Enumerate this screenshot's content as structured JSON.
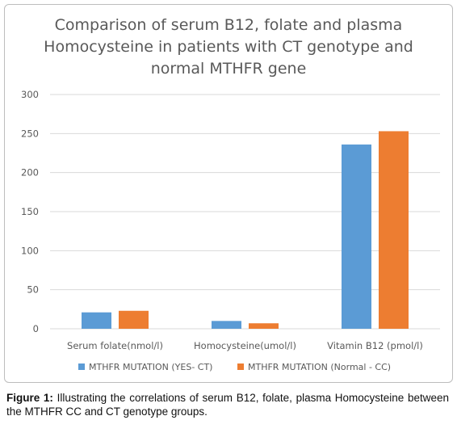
{
  "chart_data": {
    "type": "bar",
    "title_lines": [
      "Comparison of serum B12, folate and plasma",
      "Homocysteine in patients with CT genotype and",
      "normal MTHFR gene"
    ],
    "categories": [
      "Serum folate(nmol/l)",
      "Homocysteine(umol/l)",
      "Vitamin B12 (pmol/l)"
    ],
    "series": [
      {
        "name": "MTHFR MUTATION (YES- CT)",
        "values": [
          21,
          10,
          236
        ],
        "color": "#5b9bd5"
      },
      {
        "name": "MTHFR MUTATION (Normal - CC)",
        "values": [
          23,
          7,
          253
        ],
        "color": "#ed7d31"
      }
    ],
    "ylim": [
      0,
      300
    ],
    "yticks": [
      0,
      50,
      100,
      150,
      200,
      250,
      300
    ],
    "grid": true,
    "legend_position": "bottom"
  },
  "caption": {
    "label": "Figure 1:",
    "text": " Illustrating the correlations of serum B12, folate, plasma Homocysteine between the MTHFR CC and CT genotype groups."
  }
}
